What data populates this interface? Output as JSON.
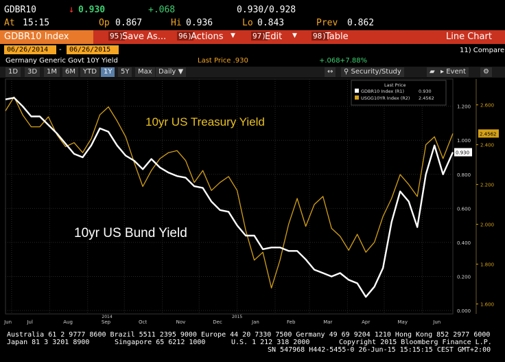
{
  "header": {
    "ticker": "GDBR10",
    "arrow": "↓",
    "last": "0.930",
    "change": "+.068",
    "bid_ask": "0.930/0.928",
    "at_label": "At",
    "time": "15:15",
    "op_label": "Op",
    "open": "0.867",
    "hi_label": "Hi",
    "high": "0.936",
    "lo_label": "Lo",
    "low": "0.843",
    "prev_label": "Prev",
    "prev": "0.862"
  },
  "toolbar": {
    "index_label": "GDBR10 Index",
    "save_key": "95)",
    "save_label": "Save As...",
    "actions_key": "96)",
    "actions_label": "Actions",
    "edit_key": "97)",
    "edit_label": "Edit",
    "table_key": "98)",
    "table_label": "Table",
    "chart_type": "Line Chart"
  },
  "range": {
    "start": "06/26/2014",
    "separator": "-",
    "end": "06/26/2015",
    "compare": "11) Compare"
  },
  "info": {
    "security_name": "Germany Generic Govt 10Y Yield",
    "last_price": "Last Price .930",
    "change": "+.068",
    "pct_change": "+7.88%"
  },
  "tabs": {
    "periods": [
      "1D",
      "3D",
      "1M",
      "6M",
      "YTD",
      "1Y",
      "5Y",
      "Max"
    ],
    "selected": "1Y",
    "frequency": "Daily",
    "security_study": "Security/Study",
    "event": "Event"
  },
  "colors": {
    "bund": "#ffffff",
    "treasury": "#d4a017",
    "toolbar_bg": "#c8321f",
    "accent": "#f5a623"
  },
  "chart_data": {
    "type": "line",
    "annotations": [
      "10yr US Treasury Yield",
      "10yr US Bund Yield"
    ],
    "x_tick_labels": [
      "Jun",
      "Jul",
      "Aug",
      "Sep",
      "Oct",
      "Nov",
      "Dec",
      "Jan",
      "Feb",
      "Mar",
      "Apr",
      "May",
      "Jun"
    ],
    "x_year_labels": [
      "2014",
      "2015"
    ],
    "y_left_ticks": [
      "1.200",
      "1.000",
      "0.800",
      "0.600",
      "0.400",
      "0.200",
      "0.000"
    ],
    "y_right_ticks": [
      "2.600",
      "2.400",
      "2.200",
      "2.000",
      "1.800",
      "1.600"
    ],
    "ylim_left": [
      -0.02,
      1.36
    ],
    "ylim_right": [
      1.55,
      2.73
    ],
    "legend": {
      "title": "Last Price",
      "entries": [
        {
          "label": "GDBR10 Index (R1)",
          "value": "0.930"
        },
        {
          "label": "USGG10YR Index (R2)",
          "value": "2.4562"
        }
      ]
    },
    "last_value_tags": {
      "bund": "0.930",
      "treasury": "2.4562"
    },
    "series": [
      {
        "name": "GDBR10 Index (R1)",
        "x": [
          "2014-06-26",
          "2014-07-03",
          "2014-07-10",
          "2014-07-17",
          "2014-07-24",
          "2014-07-31",
          "2014-08-07",
          "2014-08-14",
          "2014-08-21",
          "2014-08-28",
          "2014-09-04",
          "2014-09-11",
          "2014-09-18",
          "2014-09-25",
          "2014-10-02",
          "2014-10-09",
          "2014-10-16",
          "2014-10-23",
          "2014-10-30",
          "2014-11-06",
          "2014-11-13",
          "2014-11-20",
          "2014-11-27",
          "2014-12-04",
          "2014-12-11",
          "2014-12-18",
          "2014-12-25",
          "2015-01-01",
          "2015-01-08",
          "2015-01-15",
          "2015-01-22",
          "2015-01-29",
          "2015-02-05",
          "2015-02-12",
          "2015-02-19",
          "2015-02-26",
          "2015-03-05",
          "2015-03-12",
          "2015-03-19",
          "2015-03-26",
          "2015-04-02",
          "2015-04-09",
          "2015-04-16",
          "2015-04-23",
          "2015-04-30",
          "2015-05-07",
          "2015-05-14",
          "2015-05-21",
          "2015-05-28",
          "2015-06-04",
          "2015-06-11",
          "2015-06-18",
          "2015-06-26"
        ],
        "values": [
          1.24,
          1.25,
          1.2,
          1.14,
          1.14,
          1.09,
          1.04,
          0.98,
          0.92,
          0.9,
          0.97,
          1.07,
          1.05,
          0.97,
          0.91,
          0.88,
          0.83,
          0.89,
          0.84,
          0.81,
          0.79,
          0.78,
          0.73,
          0.72,
          0.64,
          0.59,
          0.58,
          0.5,
          0.44,
          0.44,
          0.36,
          0.37,
          0.37,
          0.35,
          0.35,
          0.3,
          0.24,
          0.22,
          0.2,
          0.22,
          0.18,
          0.16,
          0.08,
          0.14,
          0.25,
          0.52,
          0.7,
          0.64,
          0.49,
          0.8,
          0.97,
          0.8,
          0.93
        ]
      },
      {
        "name": "USGG10YR Index (R2)",
        "x": [
          "2014-06-26",
          "2014-07-03",
          "2014-07-10",
          "2014-07-17",
          "2014-07-24",
          "2014-07-31",
          "2014-08-07",
          "2014-08-14",
          "2014-08-21",
          "2014-08-28",
          "2014-09-04",
          "2014-09-11",
          "2014-09-18",
          "2014-09-25",
          "2014-10-02",
          "2014-10-09",
          "2014-10-16",
          "2014-10-23",
          "2014-10-30",
          "2014-11-06",
          "2014-11-13",
          "2014-11-20",
          "2014-11-27",
          "2014-12-04",
          "2014-12-11",
          "2014-12-18",
          "2014-12-25",
          "2015-01-01",
          "2015-01-08",
          "2015-01-15",
          "2015-01-22",
          "2015-01-29",
          "2015-02-05",
          "2015-02-12",
          "2015-02-19",
          "2015-02-26",
          "2015-03-05",
          "2015-03-12",
          "2015-03-19",
          "2015-03-26",
          "2015-04-02",
          "2015-04-09",
          "2015-04-16",
          "2015-04-23",
          "2015-04-30",
          "2015-05-07",
          "2015-05-14",
          "2015-05-21",
          "2015-05-28",
          "2015-06-04",
          "2015-06-11",
          "2015-06-18",
          "2015-06-26"
        ],
        "values": [
          2.57,
          2.64,
          2.55,
          2.49,
          2.49,
          2.54,
          2.45,
          2.39,
          2.41,
          2.36,
          2.43,
          2.55,
          2.59,
          2.52,
          2.44,
          2.31,
          2.19,
          2.27,
          2.33,
          2.36,
          2.37,
          2.32,
          2.21,
          2.27,
          2.17,
          2.21,
          2.24,
          2.17,
          1.97,
          1.82,
          1.86,
          1.68,
          1.82,
          2.0,
          2.13,
          1.99,
          2.1,
          2.14,
          1.98,
          1.94,
          1.87,
          1.95,
          1.86,
          1.91,
          2.04,
          2.13,
          2.25,
          2.2,
          2.14,
          2.4,
          2.44,
          2.33,
          2.4562
        ]
      }
    ]
  },
  "footer": {
    "line1": "Australia 61 2 9777 8600 Brazil 5511 2395 9000 Europe 44 20 7330 7500 Germany 49 69 9204 1210 Hong Kong 852 2977 6000",
    "line2_left": "Japan 81 3 3201 8900",
    "line2_mid1": "Singapore 65 6212 1000",
    "line2_mid2": "U.S. 1 212 318 2000",
    "line2_right": "Copyright 2015 Bloomberg Finance L.P.",
    "line3": "SN 547968 H442-5455-0 26-Jun-15 15:15:15 CEST GMT+2:00"
  }
}
